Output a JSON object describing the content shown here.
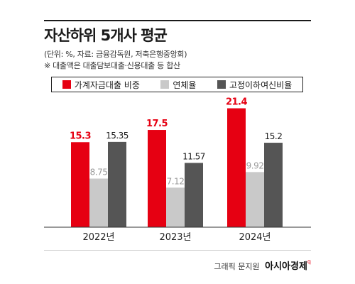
{
  "header": {
    "title": "자산하위 5개사 평균",
    "subtitle1": "(단위: %, 자료: 금융감독원, 저축은행중앙회)",
    "subtitle2": "※ 대출액은 대출담보대출·신용대출 등 합산"
  },
  "footer": {
    "credit": "그래픽 문지원",
    "brand": "아시아경제"
  },
  "colors": {
    "red": "#e60012",
    "light_gray": "#c9c9c9",
    "dark_gray": "#555555"
  },
  "chart_data": {
    "type": "bar",
    "categories": [
      "2022년",
      "2023년",
      "2024년"
    ],
    "series": [
      {
        "name": "가계자금대출 비중",
        "values": [
          15.3,
          17.5,
          21.4
        ],
        "labels": [
          "15.3",
          "17.5",
          "21.4"
        ],
        "color": "#e60012"
      },
      {
        "name": "연체율",
        "values": [
          8.75,
          7.12,
          9.92
        ],
        "labels": [
          "8.75",
          "7.12",
          "9.92"
        ],
        "color": "#c9c9c9"
      },
      {
        "name": "고정이하여신비율",
        "values": [
          15.35,
          11.57,
          15.2
        ],
        "labels": [
          "15.35",
          "11.57",
          "15.2"
        ],
        "color": "#555555"
      }
    ],
    "legend_position": "top",
    "grid": false,
    "ylim": [
      0,
      23
    ]
  }
}
